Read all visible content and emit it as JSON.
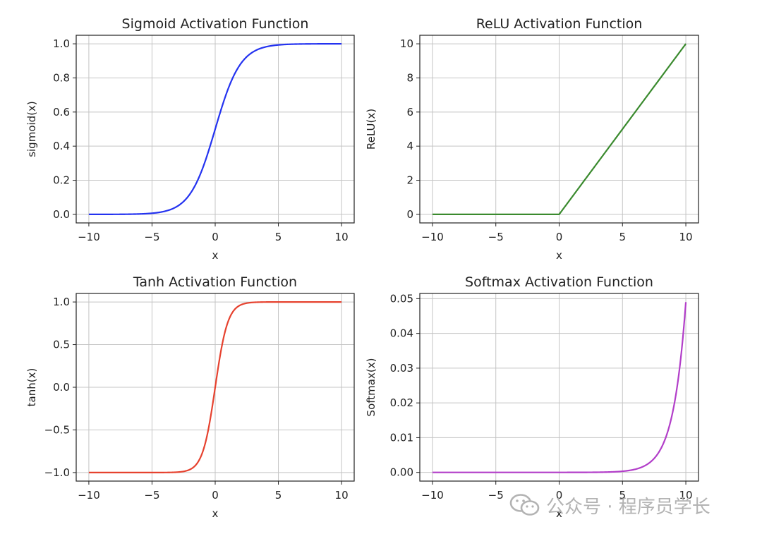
{
  "chart_data": [
    {
      "type": "line",
      "title": "Sigmoid Activation Function",
      "xlabel": "x",
      "ylabel": "sigmoid(x)",
      "function": "sigmoid",
      "x_range": [
        -10,
        10
      ],
      "xlim": [
        -11,
        11
      ],
      "ylim": [
        -0.05,
        1.05
      ],
      "xticks": [
        -10,
        -5,
        0,
        5,
        10
      ],
      "xtick_labels": [
        "−10",
        "−5",
        "0",
        "5",
        "10"
      ],
      "yticks": [
        0.0,
        0.2,
        0.4,
        0.6,
        0.8,
        1.0
      ],
      "ytick_labels": [
        "0.0",
        "0.2",
        "0.4",
        "0.6",
        "0.8",
        "1.0"
      ],
      "color": "#2433f0",
      "grid": true,
      "x": [
        -10,
        -8,
        -6,
        -5,
        -4,
        -3,
        -2,
        -1,
        0,
        1,
        2,
        3,
        4,
        5,
        6,
        8,
        10
      ],
      "y": [
        5e-05,
        0.0003,
        0.0025,
        0.0067,
        0.018,
        0.047,
        0.119,
        0.269,
        0.5,
        0.731,
        0.881,
        0.953,
        0.982,
        0.993,
        0.9975,
        0.9997,
        0.99995
      ]
    },
    {
      "type": "line",
      "title": "ReLU Activation Function",
      "xlabel": "x",
      "ylabel": "ReLU(x)",
      "function": "relu",
      "x_range": [
        -10,
        10
      ],
      "xlim": [
        -11,
        11
      ],
      "ylim": [
        -0.5,
        10.5
      ],
      "xticks": [
        -10,
        -5,
        0,
        5,
        10
      ],
      "xtick_labels": [
        "−10",
        "−5",
        "0",
        "5",
        "10"
      ],
      "yticks": [
        0,
        2,
        4,
        6,
        8,
        10
      ],
      "ytick_labels": [
        "0",
        "2",
        "4",
        "6",
        "8",
        "10"
      ],
      "color": "#3a8a2e",
      "grid": true,
      "x": [
        -10,
        -5,
        0,
        5,
        10
      ],
      "y": [
        0,
        0,
        0,
        5,
        10
      ]
    },
    {
      "type": "line",
      "title": "Tanh Activation Function",
      "xlabel": "x",
      "ylabel": "tanh(x)",
      "function": "tanh",
      "x_range": [
        -10,
        10
      ],
      "xlim": [
        -11,
        11
      ],
      "ylim": [
        -1.1,
        1.1
      ],
      "xticks": [
        -10,
        -5,
        0,
        5,
        10
      ],
      "xtick_labels": [
        "−10",
        "−5",
        "0",
        "5",
        "10"
      ],
      "yticks": [
        -1.0,
        -0.5,
        0.0,
        0.5,
        1.0
      ],
      "ytick_labels": [
        "−1.0",
        "−0.5",
        "0.0",
        "0.5",
        "1.0"
      ],
      "color": "#e6422f",
      "grid": true,
      "x": [
        -10,
        -5,
        -3,
        -2,
        -1,
        0,
        1,
        2,
        3,
        5,
        10
      ],
      "y": [
        -1.0,
        -0.9999,
        -0.995,
        -0.964,
        -0.762,
        0.0,
        0.762,
        0.964,
        0.995,
        0.9999,
        1.0
      ]
    },
    {
      "type": "line",
      "title": "Softmax Activation Function",
      "xlabel": "x",
      "ylabel": "Softmax(x)",
      "function": "softmax",
      "x_range": [
        -10,
        10
      ],
      "xlim": [
        -11,
        11
      ],
      "ylim": [
        -0.0025,
        0.0515
      ],
      "xticks": [
        -10,
        -5,
        0,
        5,
        10
      ],
      "xtick_labels": [
        "−10",
        "−5",
        "0",
        "5",
        "10"
      ],
      "yticks": [
        0.0,
        0.01,
        0.02,
        0.03,
        0.04,
        0.05
      ],
      "ytick_labels": [
        "0.00",
        "0.01",
        "0.02",
        "0.03",
        "0.04",
        "0.05"
      ],
      "color": "#b23ec9",
      "grid": true,
      "x": [
        -10,
        -5,
        0,
        5,
        6,
        7,
        8,
        9,
        10
      ],
      "y": [
        0.0,
        2e-06,
        0.0,
        0.00033,
        0.0009,
        0.0024,
        0.0066,
        0.018,
        0.049
      ]
    }
  ],
  "watermark": {
    "text": "公众号 · 程序员学长",
    "icon": "wechat-icon"
  }
}
